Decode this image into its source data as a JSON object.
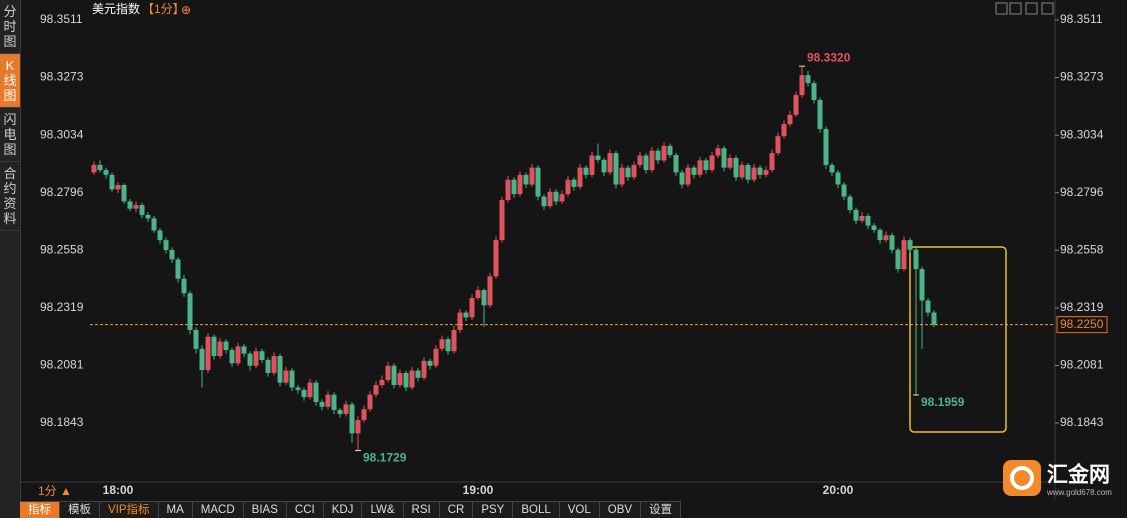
{
  "header": {
    "title": "美元指数",
    "period": "【1分】",
    "icon": "⊕"
  },
  "side_tabs": [
    "分时图",
    "K线图",
    "闪电图",
    "合约资料"
  ],
  "footer": {
    "period": "1分 ▲",
    "tabs": [
      "指标",
      "模板",
      "VIP指标",
      "MA",
      "MACD",
      "BIAS",
      "CCI",
      "KDJ",
      "LW&",
      "RSI",
      "CR",
      "PSY",
      "BOLL",
      "VOL",
      "OBV",
      "设置"
    ]
  },
  "logo": {
    "name": "汇金网",
    "url": "www.gold678.com"
  },
  "chart_data": {
    "type": "candlestick",
    "up_color": "#e0525e",
    "down_color": "#4cb489",
    "grid": false,
    "categories": [
      null,
      null,
      null,
      null,
      "18:00",
      null,
      null,
      null,
      null,
      null,
      null,
      null,
      null,
      null,
      null,
      null,
      null,
      null,
      null,
      null,
      null,
      null,
      null,
      null,
      null,
      null,
      null,
      null,
      null,
      null,
      null,
      null,
      null,
      null,
      null,
      null,
      null,
      null,
      null,
      null,
      null,
      null,
      null,
      null,
      null,
      null,
      null,
      null,
      null,
      null,
      null,
      null,
      null,
      null,
      null,
      null,
      null,
      null,
      null,
      null,
      null,
      null,
      null,
      null,
      "19:00",
      null,
      null,
      null,
      null,
      null,
      null,
      null,
      null,
      null,
      null,
      null,
      null,
      null,
      null,
      null,
      null,
      null,
      null,
      null,
      null,
      null,
      null,
      null,
      null,
      null,
      null,
      null,
      null,
      null,
      null,
      null,
      null,
      null,
      null,
      null,
      null,
      null,
      null,
      null,
      null,
      null,
      null,
      null,
      null,
      null,
      null,
      null,
      null,
      null,
      null,
      null,
      null,
      null,
      null,
      null,
      null,
      null,
      null,
      null,
      "20:00",
      null,
      null,
      null,
      null,
      null,
      null,
      null,
      null,
      null,
      null,
      null,
      null,
      null,
      null,
      null,
      null
    ],
    "ohlc": [
      [
        98.288,
        98.2925,
        98.287,
        98.2911
      ],
      [
        98.2911,
        98.293,
        98.288,
        98.289
      ],
      [
        98.289,
        98.29,
        98.2855,
        98.287
      ],
      [
        98.287,
        98.288,
        98.28,
        98.281
      ],
      [
        98.281,
        98.284,
        98.2795,
        98.2828
      ],
      [
        98.2828,
        98.2835,
        98.275,
        98.276
      ],
      [
        98.276,
        98.277,
        98.272,
        98.273
      ],
      [
        98.273,
        98.276,
        98.2715,
        98.2745
      ],
      [
        98.2745,
        98.2755,
        98.269,
        98.2704
      ],
      [
        98.2704,
        98.2715,
        98.2675,
        98.269
      ],
      [
        98.269,
        98.27,
        98.263,
        98.264
      ],
      [
        98.264,
        98.265,
        98.2585,
        98.26
      ],
      [
        98.26,
        98.261,
        98.2545,
        98.2559
      ],
      [
        98.2559,
        98.257,
        98.2505,
        98.252
      ],
      [
        98.252,
        98.253,
        98.2425,
        98.244
      ],
      [
        98.244,
        98.2455,
        98.2365,
        98.238
      ],
      [
        98.238,
        98.239,
        98.221,
        98.2228
      ],
      [
        98.2228,
        98.224,
        98.213,
        98.215
      ],
      [
        98.215,
        98.2165,
        98.199,
        98.2062
      ],
      [
        98.2062,
        98.2215,
        98.205,
        98.22
      ],
      [
        98.22,
        98.221,
        98.2105,
        98.212
      ],
      [
        98.212,
        98.2195,
        98.211,
        98.218
      ],
      [
        98.218,
        98.219,
        98.213,
        98.2145
      ],
      [
        98.2145,
        98.2155,
        98.2075,
        98.209
      ],
      [
        98.209,
        98.2175,
        98.208,
        98.216
      ],
      [
        98.216,
        98.217,
        98.2115,
        98.213
      ],
      [
        98.213,
        98.214,
        98.206,
        98.208
      ],
      [
        98.208,
        98.2155,
        98.207,
        98.214
      ],
      [
        98.214,
        98.215,
        98.209,
        98.2104
      ],
      [
        98.2104,
        98.2115,
        98.2035,
        98.205
      ],
      [
        98.205,
        98.2135,
        98.204,
        98.212
      ],
      [
        98.212,
        98.213,
        98.1995,
        98.201
      ],
      [
        98.201,
        98.2075,
        98.2,
        98.206
      ],
      [
        98.206,
        98.207,
        98.1975,
        98.199
      ],
      [
        98.199,
        98.2,
        98.1965,
        98.198
      ],
      [
        98.198,
        98.199,
        98.1935,
        98.195
      ],
      [
        98.195,
        98.2025,
        98.194,
        98.201
      ],
      [
        98.201,
        98.202,
        98.1915,
        98.193
      ],
      [
        98.193,
        98.194,
        98.1895,
        98.191
      ],
      [
        98.191,
        98.1975,
        98.19,
        98.196
      ],
      [
        98.196,
        98.197,
        98.188,
        98.1897
      ],
      [
        98.1897,
        98.1905,
        98.1865,
        98.188
      ],
      [
        98.188,
        98.1935,
        98.187,
        98.192
      ],
      [
        98.192,
        98.193,
        98.176,
        98.18
      ],
      [
        98.18,
        98.187,
        98.1729,
        98.1855
      ],
      [
        98.1855,
        98.1915,
        98.1845,
        98.19
      ],
      [
        98.19,
        98.1975,
        98.189,
        98.196
      ],
      [
        98.196,
        98.2015,
        98.195,
        98.2
      ],
      [
        98.2,
        98.204,
        98.199,
        98.2021
      ],
      [
        98.2021,
        98.2095,
        98.201,
        98.208
      ],
      [
        98.208,
        98.209,
        98.1985,
        98.2
      ],
      [
        98.2,
        98.2065,
        98.199,
        98.205
      ],
      [
        98.205,
        98.206,
        98.1975,
        98.199
      ],
      [
        98.199,
        98.2075,
        98.198,
        98.206
      ],
      [
        98.206,
        98.207,
        98.2015,
        98.203
      ],
      [
        98.203,
        98.2115,
        98.202,
        98.21
      ],
      [
        98.21,
        98.211,
        98.2065,
        98.208
      ],
      [
        98.208,
        98.2165,
        98.207,
        98.215
      ],
      [
        98.215,
        98.2205,
        98.214,
        98.219
      ],
      [
        98.219,
        98.22,
        98.2125,
        98.214
      ],
      [
        98.214,
        98.2245,
        98.213,
        98.2228
      ],
      [
        98.2228,
        98.2315,
        98.2215,
        98.23
      ],
      [
        98.23,
        98.231,
        98.2265,
        98.228
      ],
      [
        98.228,
        98.2375,
        98.227,
        98.236
      ],
      [
        98.236,
        98.241,
        98.235,
        98.2393
      ],
      [
        98.2393,
        98.24,
        98.224,
        98.233
      ],
      [
        98.233,
        98.2465,
        98.232,
        98.245
      ],
      [
        98.245,
        98.2615,
        98.244,
        98.26
      ],
      [
        98.26,
        98.278,
        98.259,
        98.2766
      ],
      [
        98.2766,
        98.2865,
        98.2755,
        98.285
      ],
      [
        98.285,
        98.286,
        98.2775,
        98.279
      ],
      [
        98.279,
        98.2885,
        98.278,
        98.287
      ],
      [
        98.287,
        98.288,
        98.2815,
        98.283
      ],
      [
        98.283,
        98.2915,
        98.282,
        98.29
      ],
      [
        98.29,
        98.291,
        98.2765,
        98.278
      ],
      [
        98.278,
        98.279,
        98.2725,
        98.274
      ],
      [
        98.274,
        98.2815,
        98.273,
        98.28
      ],
      [
        98.28,
        98.281,
        98.2745,
        98.276
      ],
      [
        98.276,
        98.2805,
        98.275,
        98.279
      ],
      [
        98.279,
        98.2865,
        98.278,
        98.285
      ],
      [
        98.285,
        98.286,
        98.2805,
        98.282
      ],
      [
        98.282,
        98.2915,
        98.281,
        98.29
      ],
      [
        98.29,
        98.291,
        98.2855,
        98.287
      ],
      [
        98.287,
        98.2965,
        98.286,
        98.295
      ],
      [
        98.295,
        98.3,
        98.292,
        98.2932
      ],
      [
        98.2932,
        98.294,
        98.2865,
        98.288
      ],
      [
        98.288,
        98.2975,
        98.287,
        98.296
      ],
      [
        98.296,
        98.297,
        98.2815,
        98.283
      ],
      [
        98.283,
        98.2915,
        98.282,
        98.29
      ],
      [
        98.29,
        98.291,
        98.2845,
        98.286
      ],
      [
        98.286,
        98.2925,
        98.285,
        98.2911
      ],
      [
        98.2911,
        98.2965,
        98.29,
        98.295
      ],
      [
        98.295,
        98.296,
        98.2875,
        98.289
      ],
      [
        98.289,
        98.2985,
        98.288,
        98.297
      ],
      [
        98.297,
        98.298,
        98.2915,
        98.293
      ],
      [
        98.293,
        98.3005,
        98.292,
        98.299
      ],
      [
        98.299,
        98.3,
        98.294,
        98.2952
      ],
      [
        98.2952,
        98.296,
        98.2865,
        98.288
      ],
      [
        98.288,
        98.289,
        98.2815,
        98.283
      ],
      [
        98.283,
        98.2915,
        98.282,
        98.29
      ],
      [
        98.29,
        98.291,
        98.2855,
        98.287
      ],
      [
        98.287,
        98.2945,
        98.286,
        98.293
      ],
      [
        98.293,
        98.294,
        98.2875,
        98.289
      ],
      [
        98.289,
        98.2965,
        98.288,
        98.295
      ],
      [
        98.295,
        98.2995,
        98.294,
        98.298
      ],
      [
        98.298,
        98.299,
        98.2885,
        98.29
      ],
      [
        98.29,
        98.2955,
        98.289,
        98.294
      ],
      [
        98.294,
        98.295,
        98.2845,
        98.286
      ],
      [
        98.286,
        98.2925,
        98.285,
        98.2911
      ],
      [
        98.2911,
        98.292,
        98.2835,
        98.285
      ],
      [
        98.285,
        98.2915,
        98.284,
        98.29
      ],
      [
        98.29,
        98.291,
        98.2855,
        98.287
      ],
      [
        98.287,
        98.2905,
        98.286,
        98.289
      ],
      [
        98.289,
        98.2975,
        98.288,
        98.296
      ],
      [
        98.296,
        98.3045,
        98.295,
        98.303
      ],
      [
        98.303,
        98.3095,
        98.302,
        98.308
      ],
      [
        98.308,
        98.3135,
        98.307,
        98.3118
      ],
      [
        98.3118,
        98.3215,
        98.311,
        98.32
      ],
      [
        98.32,
        98.332,
        98.319,
        98.3283
      ],
      [
        98.3283,
        98.33,
        98.3235,
        98.325
      ],
      [
        98.325,
        98.326,
        98.3165,
        98.318
      ],
      [
        98.318,
        98.319,
        98.3045,
        98.306
      ],
      [
        98.306,
        98.307,
        98.2895,
        98.2911
      ],
      [
        98.2911,
        98.292,
        98.2865,
        98.288
      ],
      [
        98.288,
        98.289,
        98.2815,
        98.283
      ],
      [
        98.283,
        98.284,
        98.2765,
        98.278
      ],
      [
        98.278,
        98.279,
        98.271,
        98.2725
      ],
      [
        98.2725,
        98.2735,
        98.2665,
        98.268
      ],
      [
        98.268,
        98.2715,
        98.267,
        98.27
      ],
      [
        98.27,
        98.271,
        98.2645,
        98.266
      ],
      [
        98.266,
        98.267,
        98.263,
        98.2642
      ],
      [
        98.2642,
        98.265,
        98.2585,
        98.26
      ],
      [
        98.26,
        98.2635,
        98.259,
        98.262
      ],
      [
        98.262,
        98.263,
        98.2545,
        98.256
      ],
      [
        98.256,
        98.257,
        98.2465,
        98.248
      ],
      [
        98.248,
        98.2615,
        98.247,
        98.26
      ],
      [
        98.26,
        98.261,
        98.2545,
        98.256
      ],
      [
        98.256,
        98.257,
        98.1959,
        98.248
      ],
      [
        98.248,
        98.249,
        98.215,
        98.235
      ],
      [
        98.235,
        98.236,
        98.2285,
        98.23
      ],
      [
        98.23,
        98.231,
        98.224,
        98.225
      ]
    ],
    "ylim": [
      98.1607,
      98.3511
    ],
    "yticks": [
      98.3511,
      98.3273,
      98.3034,
      98.2796,
      98.2558,
      98.2319,
      98.2081,
      98.1843
    ],
    "annotations": [
      {
        "value": 98.332,
        "label": "98.3320"
      },
      98.1729,
      98.1959
    ],
    "last_price": {
      "value": 98.225,
      "label": "98.2250"
    }
  }
}
